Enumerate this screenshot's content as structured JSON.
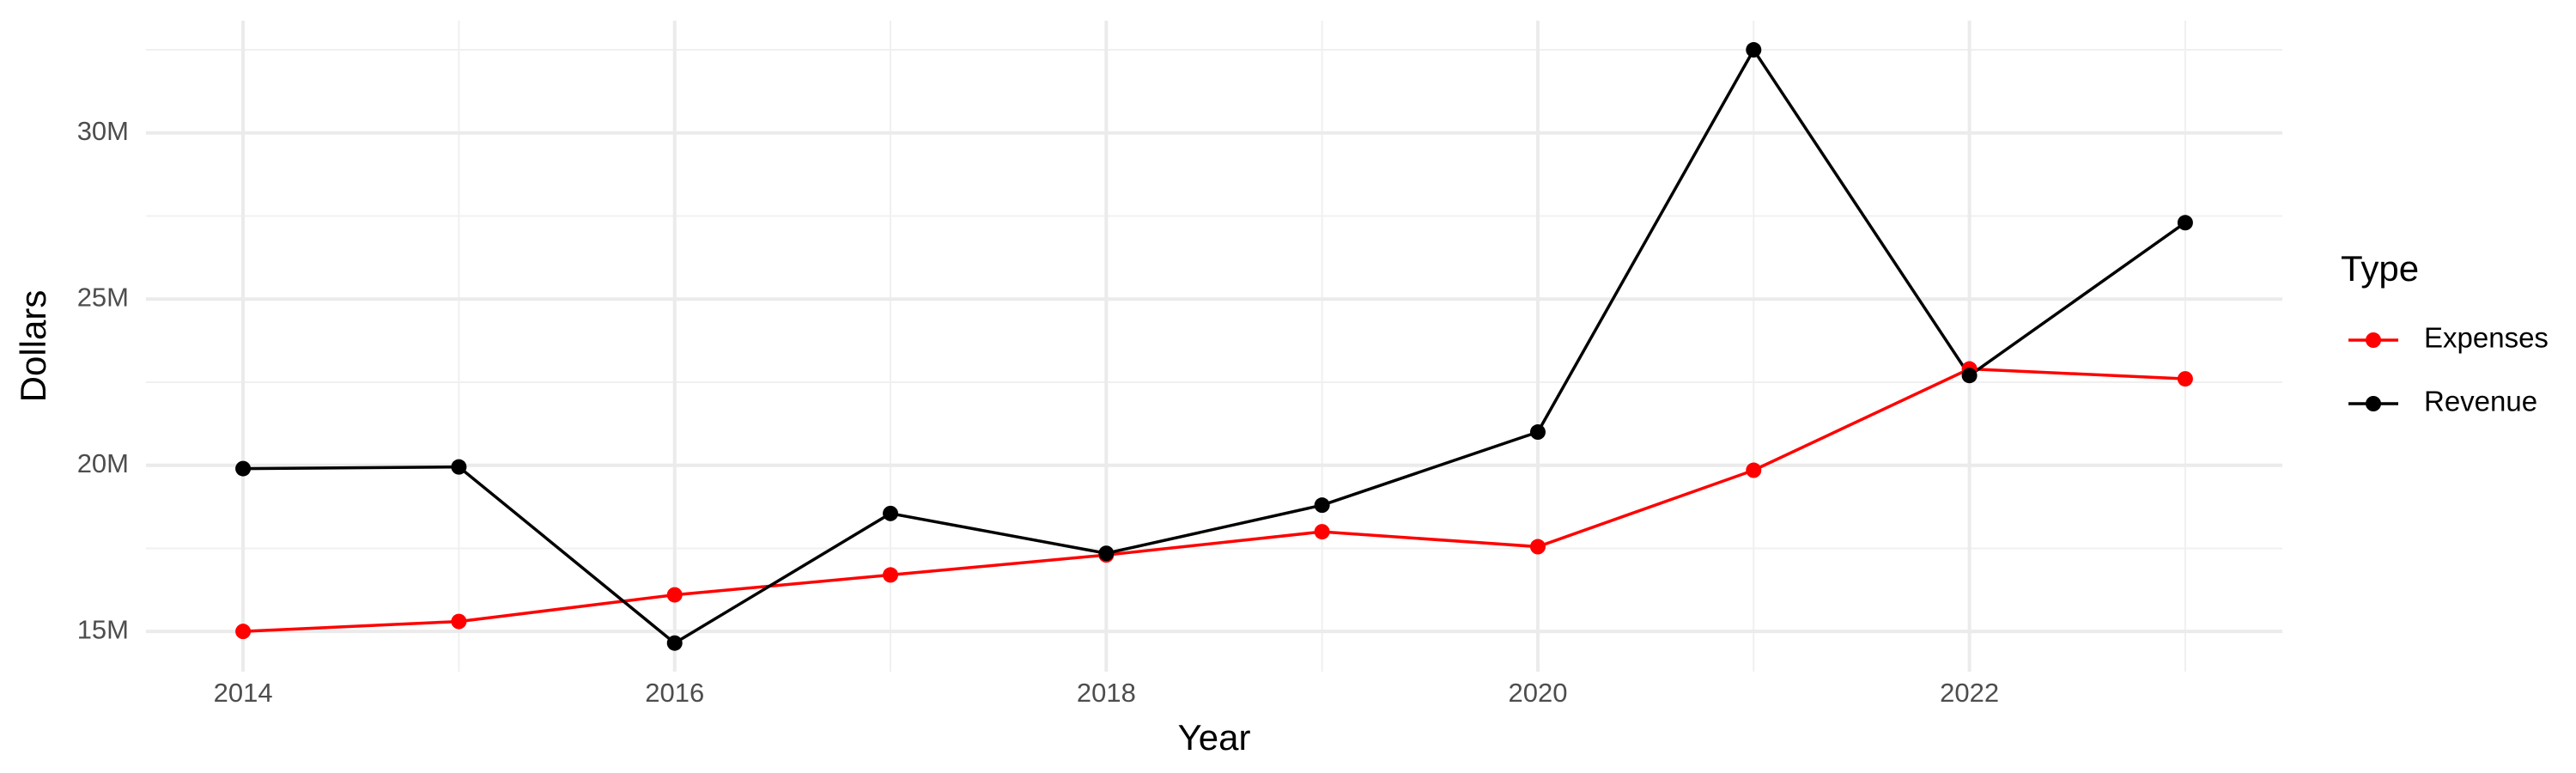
{
  "chart_data": {
    "type": "line",
    "x_label": "Year",
    "y_label": "Dollars",
    "legend_title": "Type",
    "legend_position": "right",
    "x": [
      2014,
      2015,
      2016,
      2017,
      2018,
      2019,
      2020,
      2021,
      2022,
      2023
    ],
    "series": [
      {
        "name": "Expenses",
        "color": "#ff0000",
        "values": [
          15000000,
          15300000,
          16100000,
          16700000,
          17300000,
          18000000,
          17550000,
          19850000,
          22900000,
          22600000
        ]
      },
      {
        "name": "Revenue",
        "color": "#000000",
        "values": [
          19900000,
          19950000,
          14650000,
          18550000,
          17350000,
          18800000,
          21000000,
          32500000,
          22700000,
          27300000
        ]
      }
    ],
    "xlim": [
      2013.55,
      2023.45
    ],
    "xticks": [
      2014,
      2016,
      2018,
      2020,
      2022
    ],
    "ylim": [
      13790000,
      33380000
    ],
    "yticks": [
      {
        "value": 15000000,
        "label": "15M"
      },
      {
        "value": 20000000,
        "label": "20M"
      },
      {
        "value": 25000000,
        "label": "25M"
      },
      {
        "value": 30000000,
        "label": "30M"
      }
    ],
    "grid": true
  }
}
